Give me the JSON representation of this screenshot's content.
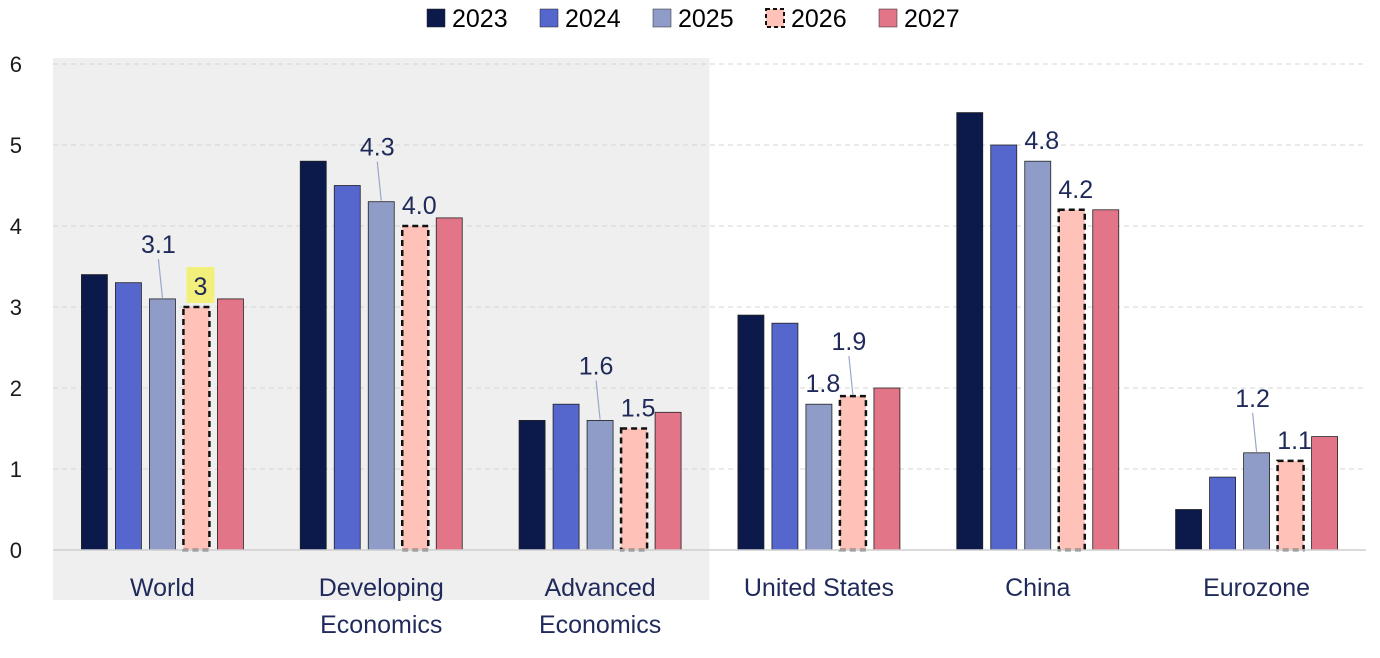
{
  "chart_data": {
    "type": "bar",
    "title": "",
    "xlabel": "",
    "ylabel": "",
    "ylim": [
      0,
      6
    ],
    "yticks": [
      "0",
      "1",
      "2",
      "3",
      "4",
      "5",
      "6"
    ],
    "grid": true,
    "legend_position": "top-center",
    "categories": [
      [
        "World"
      ],
      [
        "Developing",
        "Economics"
      ],
      [
        "Advanced",
        "Economics"
      ],
      [
        "United States"
      ],
      [
        "China"
      ],
      [
        "Eurozone"
      ]
    ],
    "highlight_band_categories": [
      0,
      2
    ],
    "series": [
      {
        "name": "2023",
        "color": "#0b1a4a",
        "style": "solid",
        "values": [
          3.4,
          4.8,
          1.6,
          2.9,
          5.4,
          0.5
        ]
      },
      {
        "name": "2024",
        "color": "#5566cc",
        "style": "solid",
        "values": [
          3.3,
          4.5,
          1.8,
          2.8,
          5.0,
          0.9
        ]
      },
      {
        "name": "2025",
        "color": "#8f9cc8",
        "style": "solid",
        "values": [
          3.1,
          4.3,
          1.6,
          1.8,
          4.8,
          1.2
        ]
      },
      {
        "name": "2026",
        "color": "#ffc2b8",
        "style": "dashed",
        "values": [
          3.0,
          4.0,
          1.5,
          1.9,
          4.2,
          1.1
        ]
      },
      {
        "name": "2027",
        "color": "#e27587",
        "style": "solid",
        "values": [
          3.1,
          4.1,
          1.7,
          2.0,
          4.2,
          1.4
        ]
      }
    ],
    "data_labels": [
      {
        "category": 0,
        "series": 2,
        "text": "3.1",
        "leader": true,
        "highlight": false
      },
      {
        "category": 0,
        "series": 3,
        "text": "3",
        "leader": false,
        "highlight": true
      },
      {
        "category": 1,
        "series": 2,
        "text": "4.3",
        "leader": true,
        "highlight": false
      },
      {
        "category": 1,
        "series": 3,
        "text": "4.0",
        "leader": false,
        "highlight": false
      },
      {
        "category": 2,
        "series": 2,
        "text": "1.6",
        "leader": true,
        "highlight": false
      },
      {
        "category": 2,
        "series": 3,
        "text": "1.5",
        "leader": false,
        "highlight": false
      },
      {
        "category": 3,
        "series": 2,
        "text": "1.8",
        "leader": false,
        "highlight": false
      },
      {
        "category": 3,
        "series": 3,
        "text": "1.9",
        "leader": true,
        "highlight": false
      },
      {
        "category": 4,
        "series": 2,
        "text": "4.8",
        "leader": false,
        "highlight": false
      },
      {
        "category": 4,
        "series": 3,
        "text": "4.2",
        "leader": false,
        "highlight": false
      },
      {
        "category": 5,
        "series": 2,
        "text": "1.2",
        "leader": true,
        "highlight": false
      },
      {
        "category": 5,
        "series": 3,
        "text": "1.1",
        "leader": false,
        "highlight": false
      }
    ]
  }
}
